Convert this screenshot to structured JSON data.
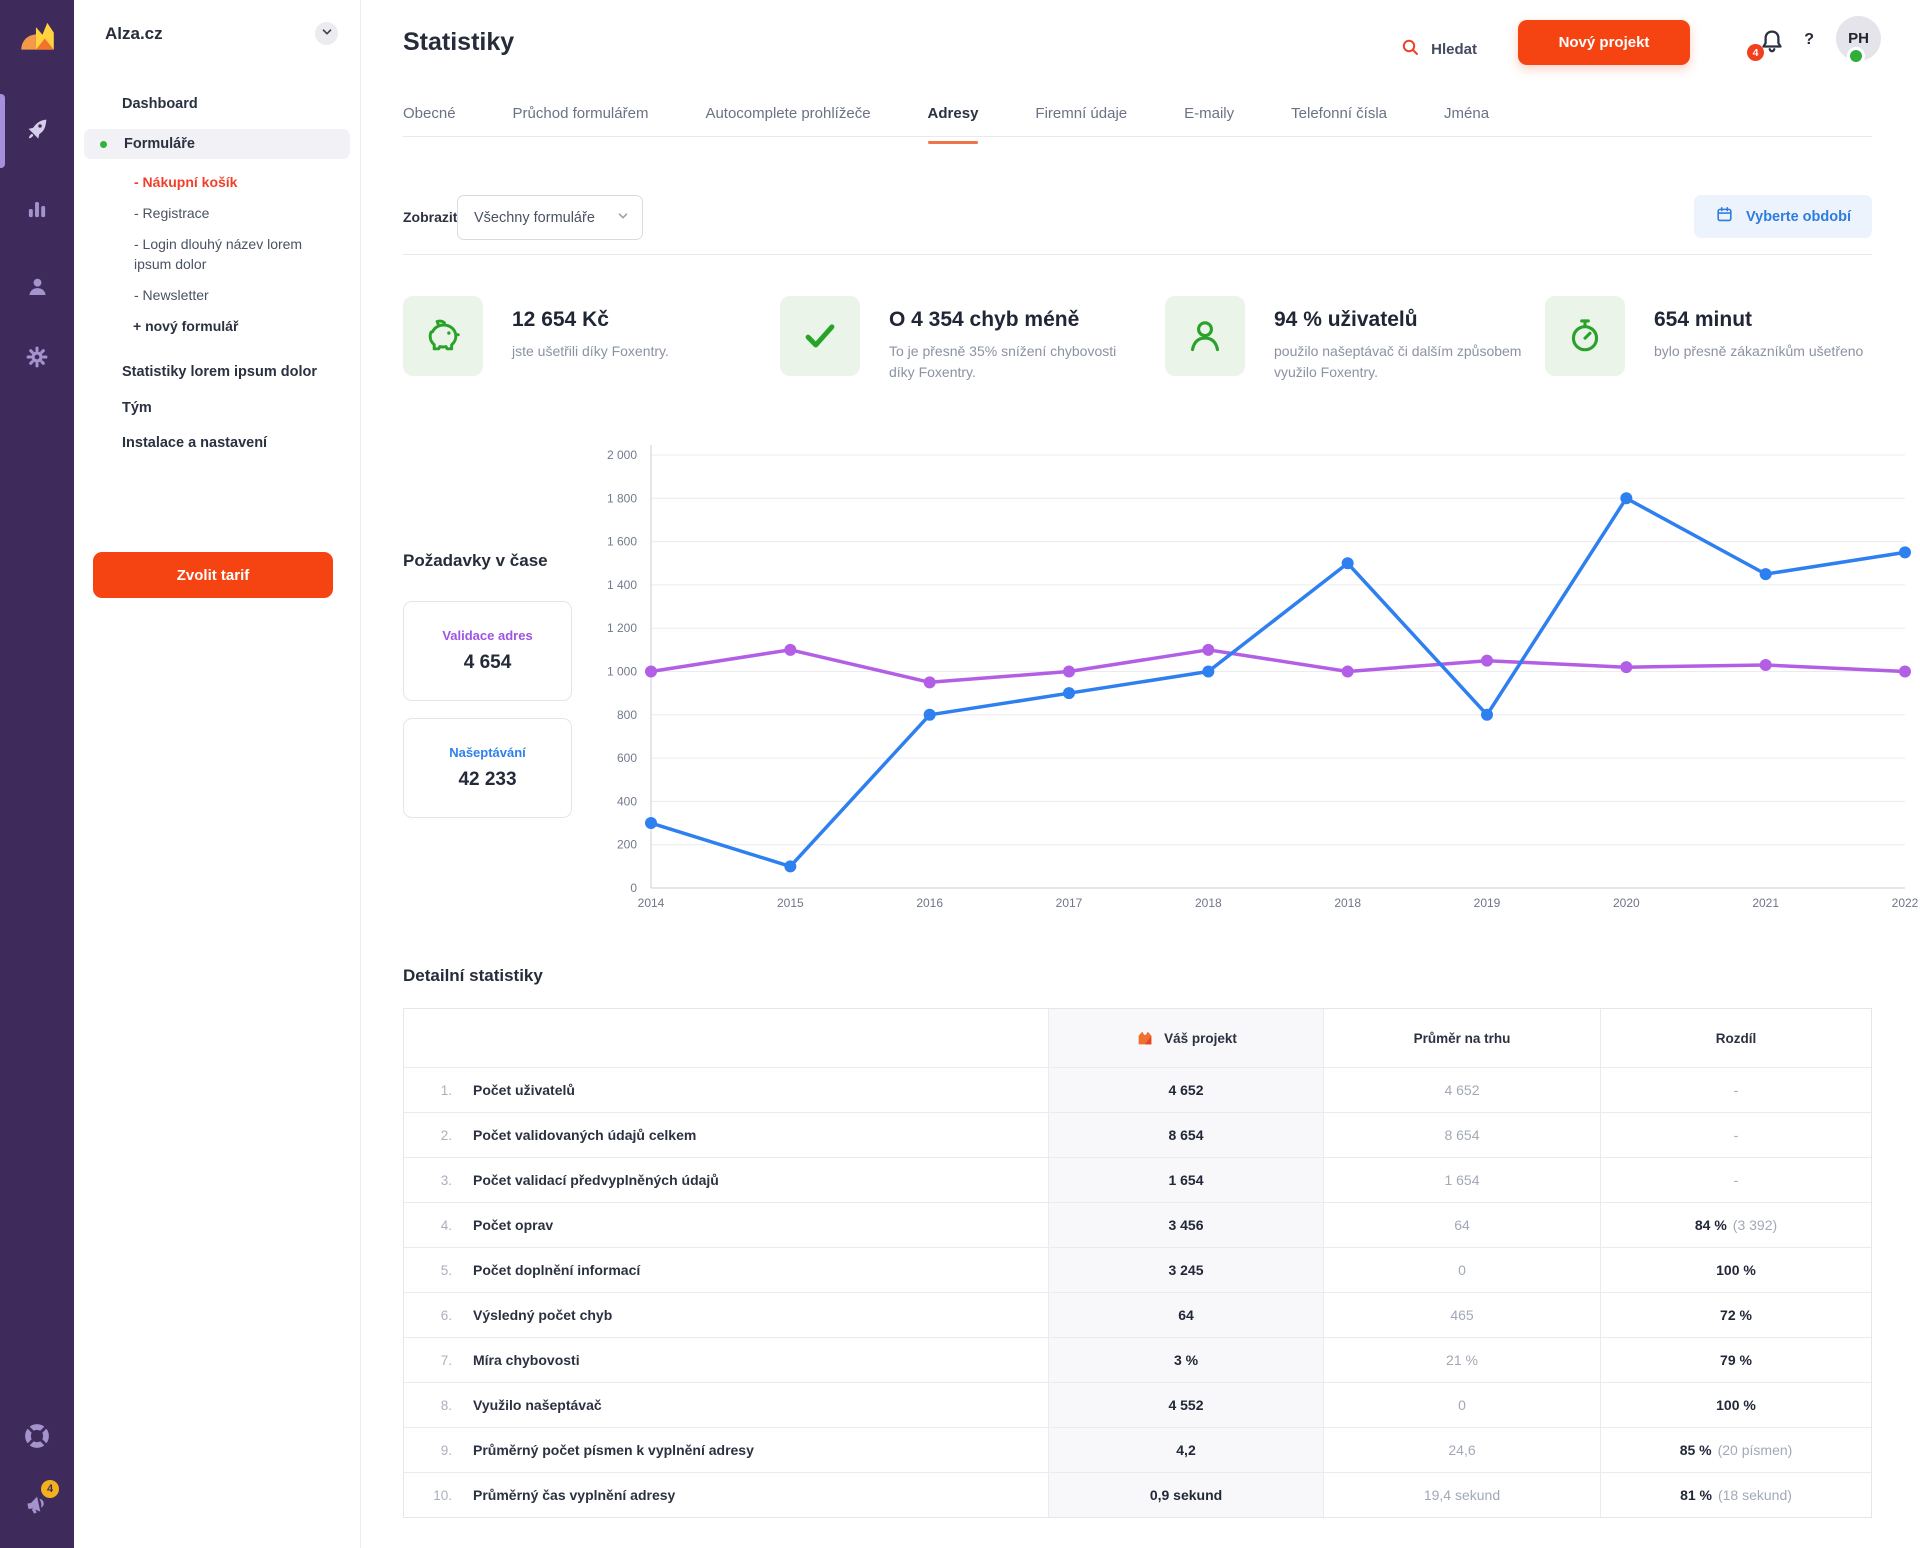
{
  "header": {
    "title": "Statistiky",
    "search_label": "Hledat",
    "new_project_label": "Nový projekt",
    "notification_count": "4",
    "help_label": "?",
    "avatar_initials": "PH"
  },
  "sidebar": {
    "project_name": "Alza.cz",
    "rail_badge": "4",
    "nav": [
      {
        "type": "item",
        "label": "Dashboard"
      },
      {
        "type": "active",
        "label": "Formuláře"
      },
      {
        "type": "sub",
        "prefix": "- ",
        "label": "Nákupní košík",
        "highlight": true
      },
      {
        "type": "sub",
        "prefix": "- ",
        "label": "Registrace"
      },
      {
        "type": "sub",
        "prefix": "- ",
        "label": "Login dlouhý název lorem ipsum dolor"
      },
      {
        "type": "sub",
        "prefix": "- ",
        "label": "Newsletter"
      },
      {
        "type": "add",
        "prefix": "+ ",
        "label": "nový formulář"
      },
      {
        "type": "item",
        "group": true,
        "label": "Statistiky lorem ipsum dolor"
      },
      {
        "type": "item",
        "label": "Tým"
      },
      {
        "type": "item",
        "label": "Instalace a nastavení"
      }
    ],
    "tariff_button_label": "Zvolit tarif"
  },
  "tabs": {
    "active_index": 3,
    "items": [
      "Obecné",
      "Průchod formulářem",
      "Autocomplete prohlížeče",
      "Adresy",
      "Firemní údaje",
      "E-maily",
      "Telefonní čísla",
      "Jména"
    ]
  },
  "filter": {
    "label": "Zobrazit:",
    "selected": "Všechny formuláře",
    "period_label": "Vyberte období"
  },
  "cards": [
    {
      "icon": "piggy-bank-icon",
      "title": "12 654 Kč",
      "desc": "jste ušetřili díky Foxentry."
    },
    {
      "icon": "check-icon",
      "title": "O 4 354 chyb méně",
      "desc": "To je přesně 35% snížení chybovosti díky Foxentry."
    },
    {
      "icon": "user-icon",
      "title": "94 % uživatelů",
      "desc": "použilo našeptávač či dalším způsobem využilo Foxentry."
    },
    {
      "icon": "stopwatch-icon",
      "title": "654 minut",
      "desc": "bylo přesně zákazníkům ušetřeno"
    }
  ],
  "requests": {
    "heading": "Požadavky v čase",
    "metrics": [
      {
        "label": "Validace adres",
        "value": "4 654",
        "color": "#9d55e3"
      },
      {
        "label": "Našeptávání",
        "value": "42 233",
        "color": "#2f80ed"
      }
    ]
  },
  "chart_data": {
    "type": "line",
    "title": "Požadavky v čase",
    "categories": [
      "2014",
      "2015",
      "2016",
      "2017",
      "2018",
      "2018",
      "2019",
      "2020",
      "2021",
      "2022"
    ],
    "series": [
      {
        "name": "Validace adres",
        "color": "#b35fe5",
        "values": [
          1000,
          1100,
          950,
          1000,
          1100,
          1000,
          1050,
          1020,
          1030,
          1000
        ]
      },
      {
        "name": "Našeptávání",
        "color": "#2e7ff0",
        "values": [
          300,
          100,
          800,
          900,
          1000,
          1500,
          800,
          1800,
          1450,
          1550
        ]
      }
    ],
    "ylim": [
      0,
      2000
    ],
    "ytick_step": 200,
    "grid": true,
    "legend_position": "none"
  },
  "details": {
    "heading": "Detailní statistiky",
    "columns": {
      "project": "Váš projekt",
      "market": "Průměr na trhu",
      "diff": "Rozdíl"
    },
    "rows": [
      {
        "num": "1.",
        "label": "Počet uživatelů",
        "project": "4 652",
        "market": "4 652",
        "diff": "-",
        "note": ""
      },
      {
        "num": "2.",
        "label": "Počet validovaných údajů celkem",
        "project": "8 654",
        "market": "8 654",
        "diff": "-",
        "note": ""
      },
      {
        "num": "3.",
        "label": "Počet validací předvyplněných údajů",
        "project": "1 654",
        "market": "1 654",
        "diff": "-",
        "note": ""
      },
      {
        "num": "4.",
        "label": "Počet oprav",
        "project": "3 456",
        "market": "64",
        "diff": "84 %",
        "note": "(3 392)"
      },
      {
        "num": "5.",
        "label": "Počet doplnění informací",
        "project": "3 245",
        "market": "0",
        "diff": "100 %",
        "note": ""
      },
      {
        "num": "6.",
        "label": "Výsledný počet chyb",
        "project": "64",
        "market": "465",
        "diff": "72 %",
        "note": ""
      },
      {
        "num": "7.",
        "label": "Míra chybovosti",
        "project": "3 %",
        "market": "21 %",
        "diff": "79 %",
        "note": ""
      },
      {
        "num": "8.",
        "label": "Využilo našeptávač",
        "project": "4 552",
        "market": "0",
        "diff": "100 %",
        "note": ""
      },
      {
        "num": "9.",
        "label": "Průměrný počet písmen k vyplnění adresy",
        "project": "4,2",
        "market": "24,6",
        "diff": "85 %",
        "note": "(20 písmen)"
      },
      {
        "num": "10.",
        "label": "Průměrný čas vyplnění adresy",
        "project": "0,9 sekund",
        "market": "19,4 sekund",
        "diff": "81 %",
        "note": "(18 sekund)"
      }
    ]
  }
}
